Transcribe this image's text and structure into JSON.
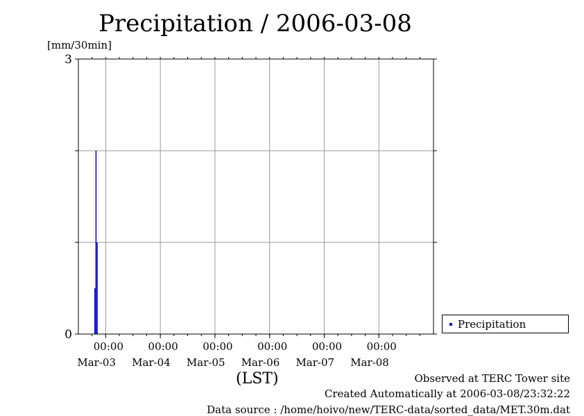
{
  "chart_data": {
    "type": "bar",
    "title": "Precipitation / 2006-03-08",
    "ylabel": "[mm/30min]",
    "xlabel": "(LST)",
    "ylim": [
      0,
      3
    ],
    "yticks": [
      0,
      3
    ],
    "x_range": [
      "2006-03-02 12:00",
      "2006-03-08 24:00"
    ],
    "x_ticks": [
      {
        "time": "00:00",
        "date": "Mar-03"
      },
      {
        "time": "00:00",
        "date": "Mar-04"
      },
      {
        "time": "00:00",
        "date": "Mar-05"
      },
      {
        "time": "00:00",
        "date": "Mar-06"
      },
      {
        "time": "00:00",
        "date": "Mar-07"
      },
      {
        "time": "00:00",
        "date": "Mar-08"
      }
    ],
    "grid": true,
    "legend_position": "bottom-right",
    "series": [
      {
        "name": "Precipitation",
        "color": "#1010d0",
        "points": [
          {
            "time": "2006-03-02 19:30",
            "value": 0.5
          },
          {
            "time": "2006-03-02 20:00",
            "value": 2.0
          },
          {
            "time": "2006-03-02 20:30",
            "value": 1.0
          }
        ]
      }
    ]
  },
  "legend": {
    "label": "Precipitation"
  },
  "footer": {
    "observed": "Observed at TERC Tower site",
    "created": "Created Automatically at 2006-03-08/23:32:22",
    "source": "Data source : /home/hoivo/new/TERC-data/sorted_data/MET.30m.dat"
  }
}
